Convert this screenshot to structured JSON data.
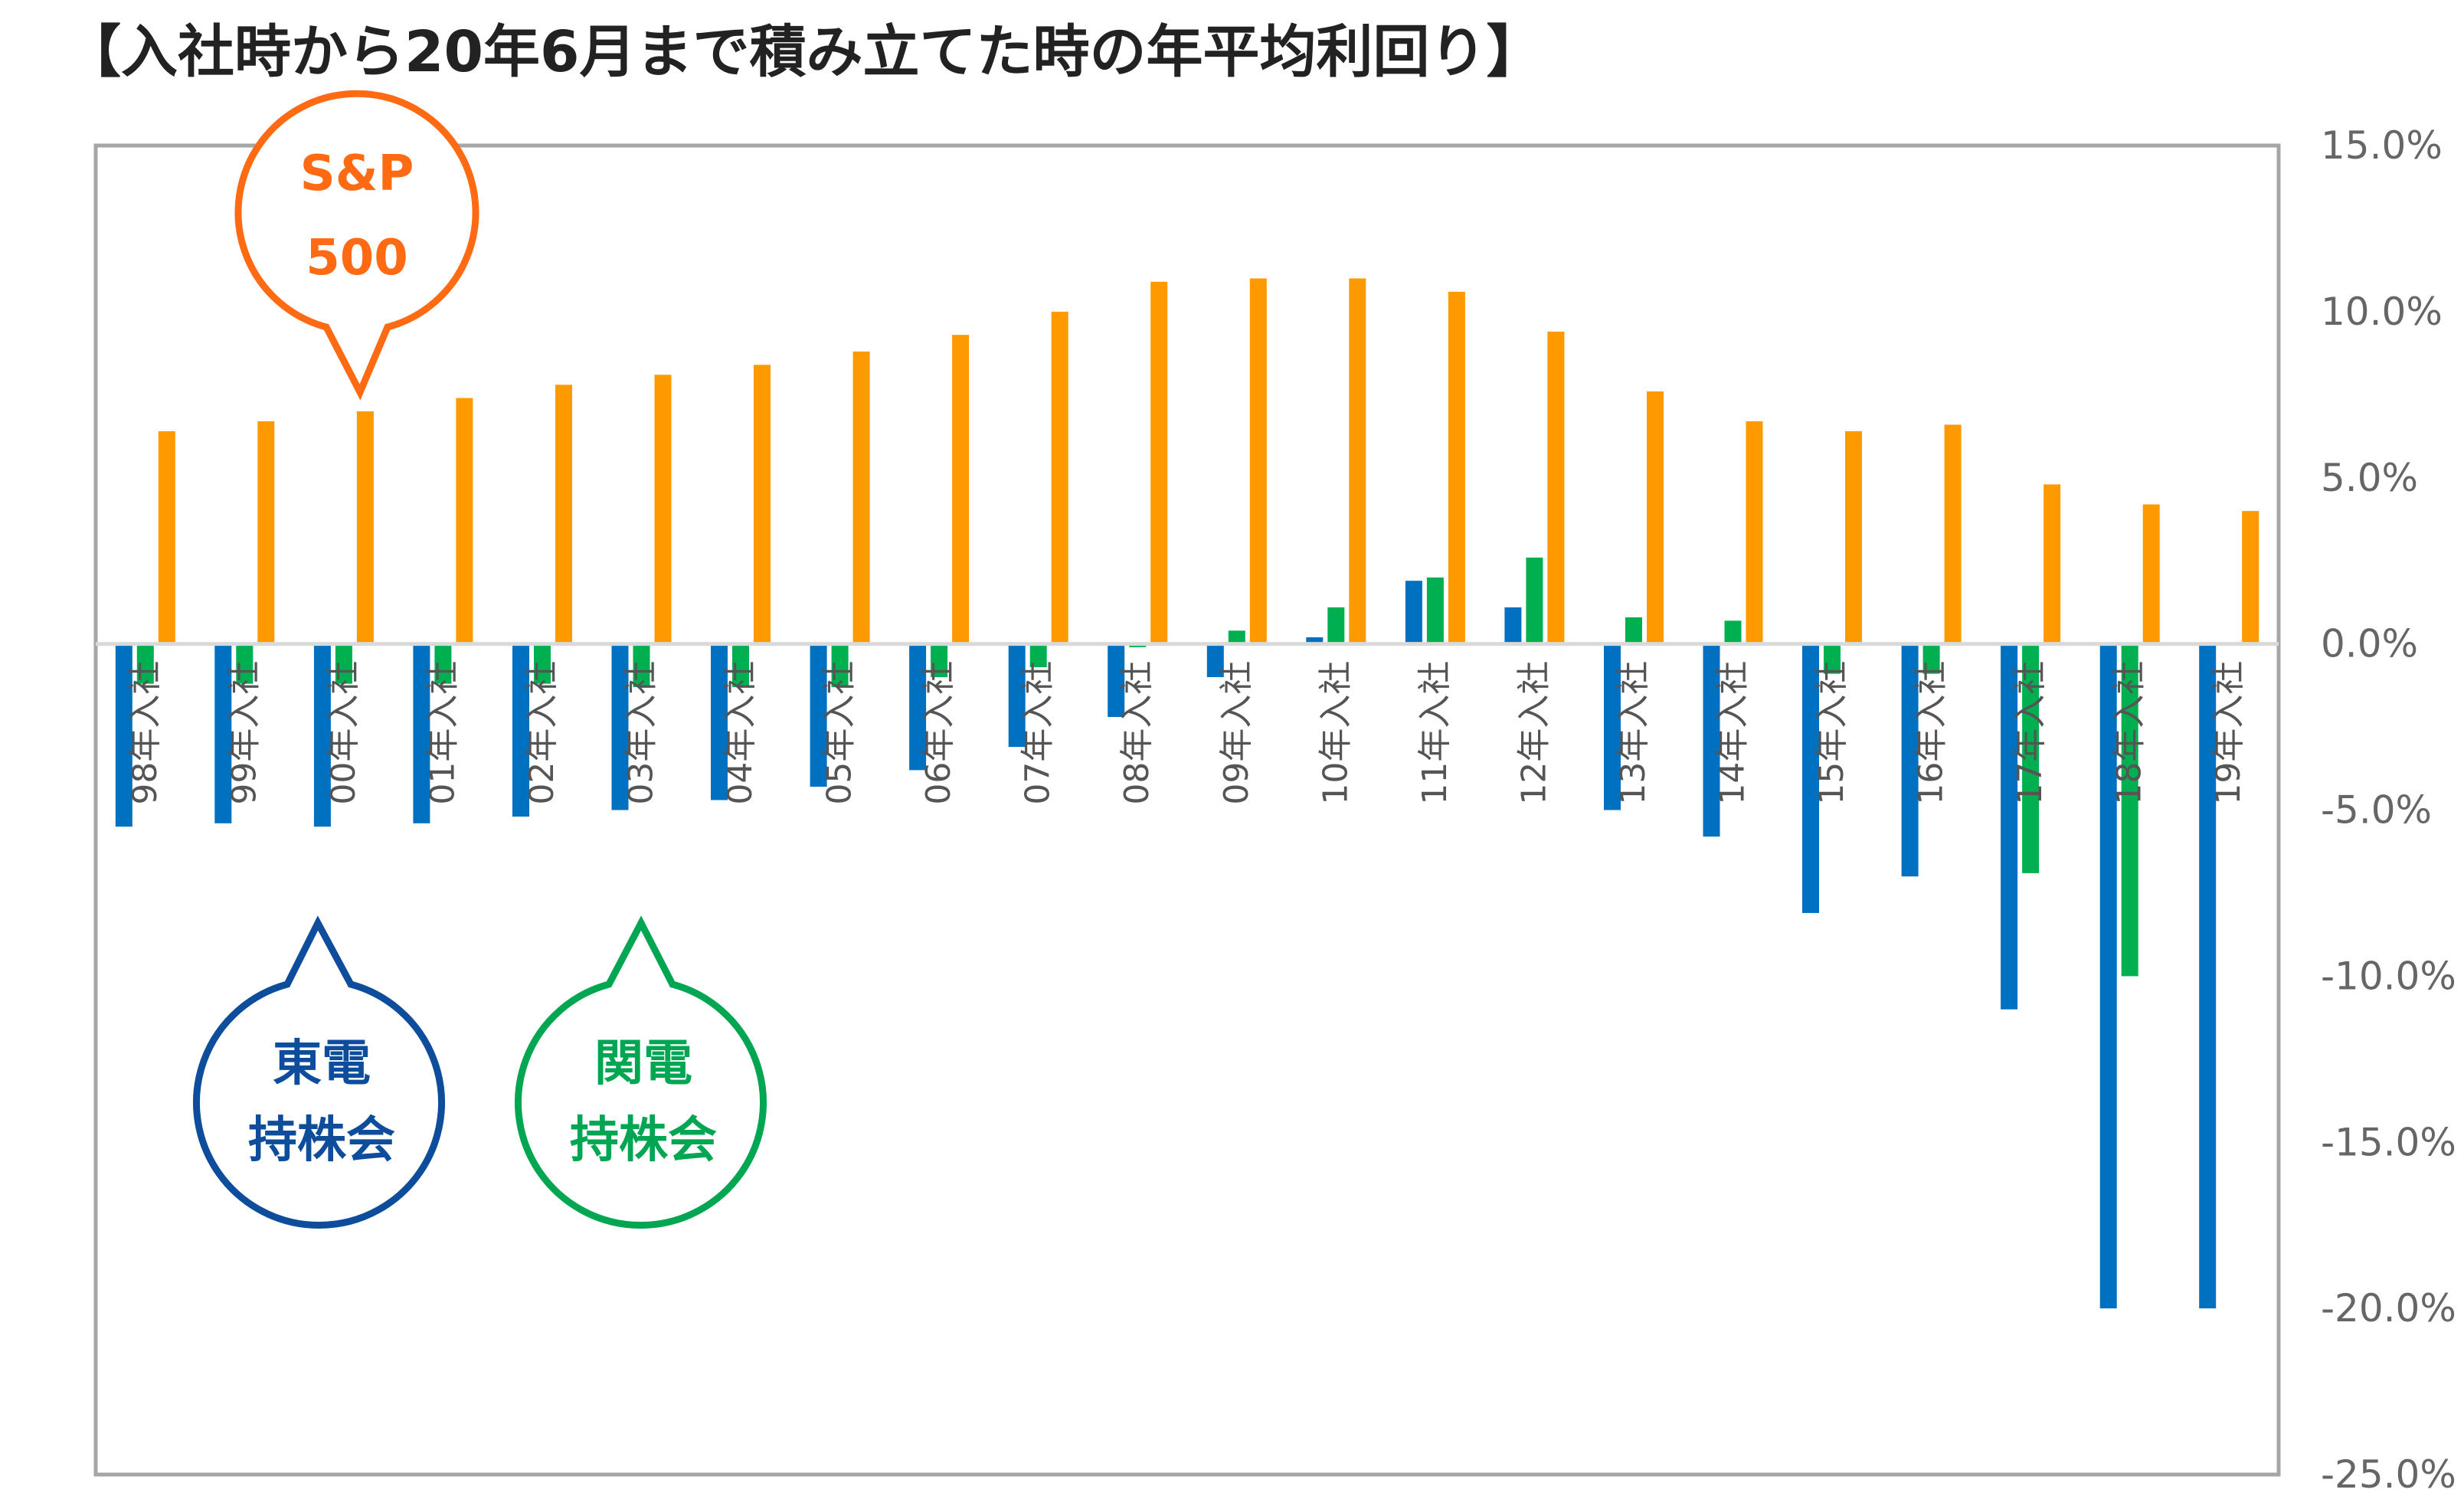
{
  "chart_data": {
    "type": "bar",
    "title": "【入社時から20年6月まで積み立てた時の年平均利回り】",
    "categories": [
      "98年入社",
      "99年入社",
      "00年入社",
      "01年入社",
      "02年入社",
      "03年入社",
      "04年入社",
      "05年入社",
      "06年入社",
      "07年入社",
      "08年入社",
      "09年入社",
      "10年入社",
      "11年入社",
      "12年入社",
      "13年入社",
      "14年入社",
      "15年入社",
      "16年入社",
      "17年入社",
      "18年入社",
      "19年入社"
    ],
    "series": [
      {
        "name": "東電持株会",
        "color": "#0070C0",
        "values": [
          -5.5,
          -5.4,
          -5.5,
          -5.4,
          -5.2,
          -5.0,
          -4.7,
          -4.3,
          -3.8,
          -3.1,
          -2.2,
          -1.0,
          0.2,
          1.9,
          1.1,
          -5.0,
          -5.8,
          -8.1,
          -7.0,
          -11.0,
          -20.0,
          -20.0
        ]
      },
      {
        "name": "関電持株会",
        "color": "#00B050",
        "values": [
          -1.2,
          -1.2,
          -1.2,
          -1.2,
          -1.2,
          -1.3,
          -1.3,
          -1.3,
          -1.0,
          -0.7,
          -0.1,
          0.4,
          1.1,
          2.0,
          2.6,
          0.8,
          0.7,
          -0.9,
          -0.9,
          -6.9,
          -10.0,
          0.0
        ]
      },
      {
        "name": "S&P 500",
        "color": "#FF9900",
        "values": [
          6.4,
          6.7,
          7.0,
          7.4,
          7.8,
          8.1,
          8.4,
          8.8,
          9.3,
          10.0,
          10.9,
          11.0,
          11.0,
          10.6,
          9.4,
          7.6,
          6.7,
          6.4,
          6.6,
          4.8,
          4.2,
          4.0
        ]
      }
    ],
    "ylim": [
      -25,
      15
    ],
    "yticks": [
      "15.0%",
      "10.0%",
      "5.0%",
      "0.0%",
      "-5.0%",
      "-10.0%",
      "-15.0%",
      "-20.0%",
      "-25.0%"
    ],
    "y_axis_side": "right",
    "grid": false,
    "legend": "callouts"
  },
  "callouts": {
    "sp500": {
      "line1": "S&P",
      "line2": "500",
      "color": "#FF6A13"
    },
    "toden": {
      "line1": "東電",
      "line2": "持株会",
      "color": "#0E4C9C"
    },
    "kanden": {
      "line1": "関電",
      "line2": "持株会",
      "color": "#00A651"
    }
  },
  "colors": {
    "frame": "#A6A6A6",
    "zero_line": "#D9D9D9",
    "tick_text": "#666666"
  }
}
